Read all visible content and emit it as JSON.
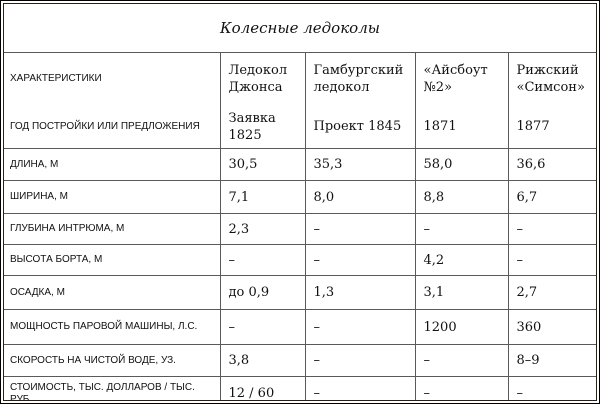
{
  "title": "Колесные ледоколы",
  "columns": [
    "ХАРАКТЕРИСТИКИ",
    "Ледокол Джонса",
    "Гамбургский ледокол",
    "«Айсбоут №2»",
    "Рижский «Симсон»"
  ],
  "rows": [
    {
      "label": "ГОД ПОСТРОЙКИ ИЛИ ПРЕДЛОЖЕНИЯ",
      "values": [
        "Заявка 1825",
        "Проект 1845",
        "1871",
        "1877"
      ]
    },
    {
      "label": "ДЛИНА, М",
      "values": [
        "30,5",
        "35,3",
        "58,0",
        "36,6"
      ]
    },
    {
      "label": "ШИРИНА, М",
      "values": [
        "7,1",
        "8,0",
        "8,8",
        "6,7"
      ]
    },
    {
      "label": "ГЛУБИНА ИНТРЮМА, М",
      "values": [
        "2,3",
        "–",
        "–",
        "–"
      ]
    },
    {
      "label": "ВЫСОТА БОРТА, М",
      "values": [
        "–",
        "–",
        "4,2",
        "–"
      ]
    },
    {
      "label": "ОСАДКА, М",
      "values": [
        "до 0,9",
        "1,3",
        "3,1",
        "2,7"
      ]
    },
    {
      "label": "МОЩНОСТЬ ПАРОВОЙ МАШИНЫ, Л.С.",
      "values": [
        "–",
        "–",
        "1200",
        "360"
      ]
    },
    {
      "label": "СКОРОСТЬ НА ЧИСТОЙ ВОДЕ, УЗ.",
      "values": [
        "3,8",
        "–",
        "–",
        "8–9"
      ]
    },
    {
      "label": "СТОИМОСТЬ, ТЫС. ДОЛЛАРОВ / ТЫС. РУБ.",
      "values": [
        "12 / 60",
        "–",
        "–",
        "–"
      ]
    }
  ]
}
